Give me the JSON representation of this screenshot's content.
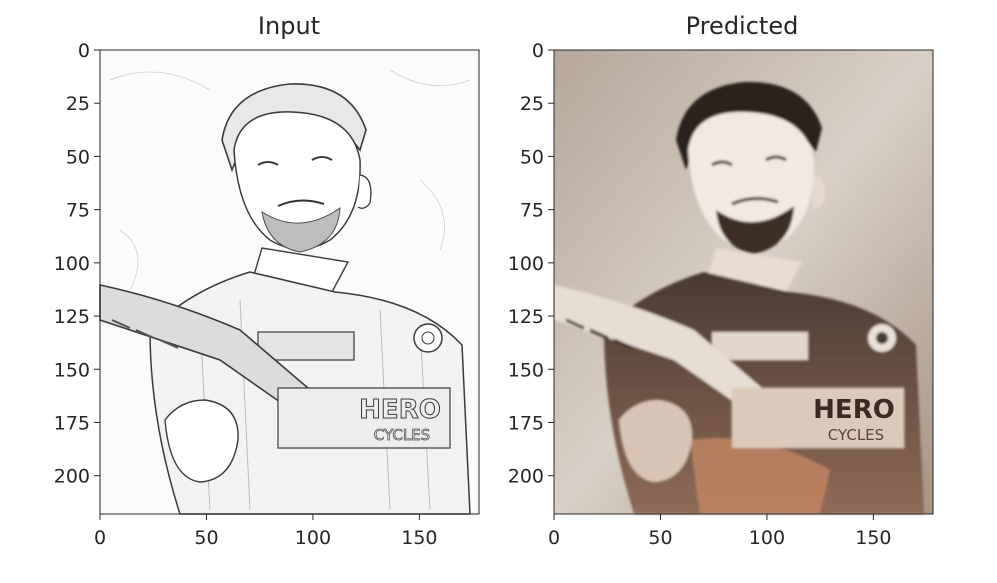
{
  "panels": [
    {
      "title": "Input",
      "image_style": "pencil-sketch",
      "image_text": [
        "HERO",
        "CYCLES"
      ],
      "xlim": [
        0,
        178
      ],
      "ylim": [
        218,
        0
      ],
      "xticks": [
        0,
        50,
        100,
        150
      ],
      "yticks": [
        0,
        25,
        50,
        75,
        100,
        125,
        150,
        175,
        200
      ]
    },
    {
      "title": "Predicted",
      "image_style": "colorized",
      "image_text": [
        "HERO",
        "CYCLES"
      ],
      "xlim": [
        0,
        178
      ],
      "ylim": [
        218,
        0
      ],
      "xticks": [
        0,
        50,
        100,
        150
      ],
      "yticks": [
        0,
        25,
        50,
        75,
        100,
        125,
        150,
        175,
        200
      ]
    }
  ],
  "colors": {
    "axis": "#262626",
    "sketch_bg": "#fbfbfb",
    "sketch_line": "#3a3a3a",
    "pred_bg": "#c9beb4",
    "pred_dark": "#3b2b24",
    "pred_skin": "#f2ece6",
    "pred_accent": "#d9a07a"
  }
}
